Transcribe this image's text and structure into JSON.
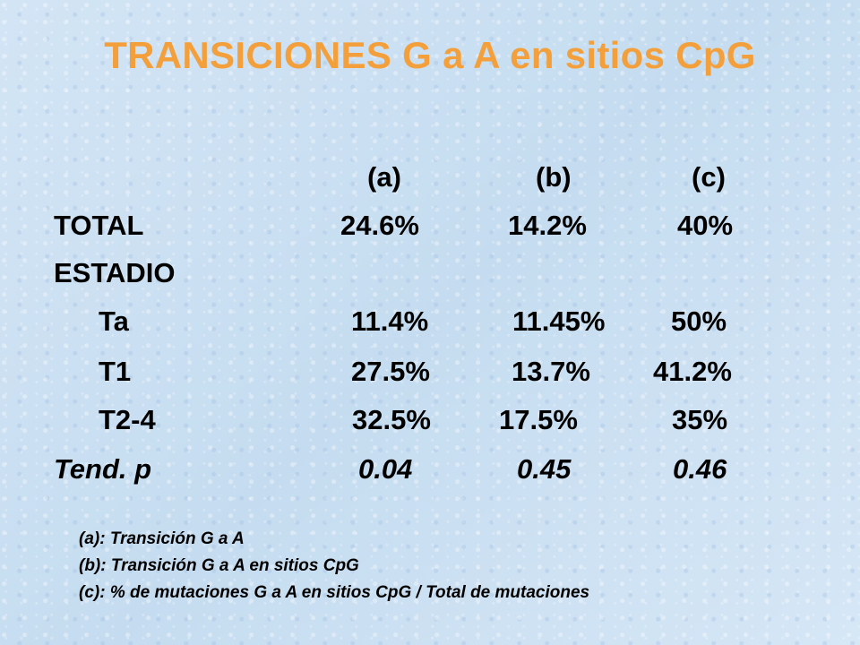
{
  "title": "TRANSICIONES G a A en sitios CpG",
  "table": {
    "headers": [
      "(a)",
      "(b)",
      "(c)"
    ],
    "rows": [
      {
        "label": "TOTAL",
        "values": [
          "24.6%",
          "14.2%",
          "40%"
        ]
      },
      {
        "label": "ESTADIO",
        "values": [
          "",
          "",
          ""
        ]
      },
      {
        "label": "Ta",
        "values": [
          "11.4%",
          "11.45%",
          "50%"
        ]
      },
      {
        "label": "T1",
        "values": [
          "27.5%",
          "13.7%",
          "41.2%"
        ]
      },
      {
        "label": "T2-4",
        "values": [
          "32.5%",
          "17.5%",
          "35%"
        ]
      },
      {
        "label": "Tend. p",
        "values": [
          "0.04",
          "0.45",
          "0.46"
        ]
      }
    ]
  },
  "footnotes": [
    "(a): Transición G a A",
    "(b): Transición G a A en sitios CpG",
    "(c): % de mutaciones G a A en sitios CpG / Total de mutaciones"
  ],
  "colors": {
    "title": "#f3a03c",
    "background": "#cfe2f3",
    "text": "#000000"
  }
}
